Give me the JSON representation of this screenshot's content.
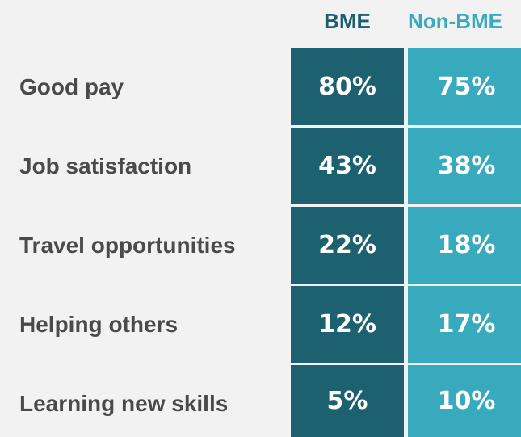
{
  "table": {
    "columns": [
      "BME",
      "Non-BME"
    ],
    "rows": [
      {
        "label": "Good pay",
        "cells": [
          "80%",
          "75%"
        ]
      },
      {
        "label": "Job satisfaction",
        "cells": [
          "43%",
          "38%"
        ]
      },
      {
        "label": "Travel opportunities",
        "cells": [
          "22%",
          "18%"
        ]
      },
      {
        "label": "Helping others",
        "cells": [
          "12%",
          "17%"
        ]
      },
      {
        "label": "Learning new skills",
        "cells": [
          "5%",
          "10%"
        ]
      }
    ]
  }
}
